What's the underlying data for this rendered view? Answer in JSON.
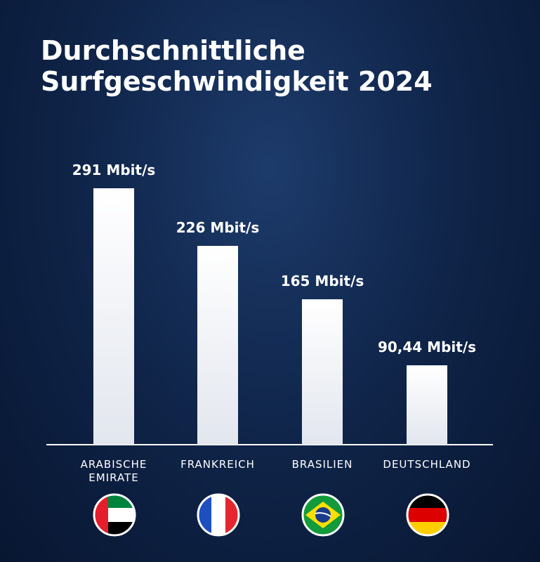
{
  "chart_data": {
    "type": "bar",
    "title": "Durchschnittliche Surfgeschwindigkeit 2024",
    "categories": [
      "ARABISCHE EMIRATE",
      "FRANKREICH",
      "BRASILIEN",
      "DEUTSCHLAND"
    ],
    "values": [
      291,
      226,
      165,
      90.44
    ],
    "value_labels": [
      "291 Mbit/s",
      "226 Mbit/s",
      "165 Mbit/s",
      "90,44 Mbit/s"
    ],
    "color": "#ffffff"
  }
}
